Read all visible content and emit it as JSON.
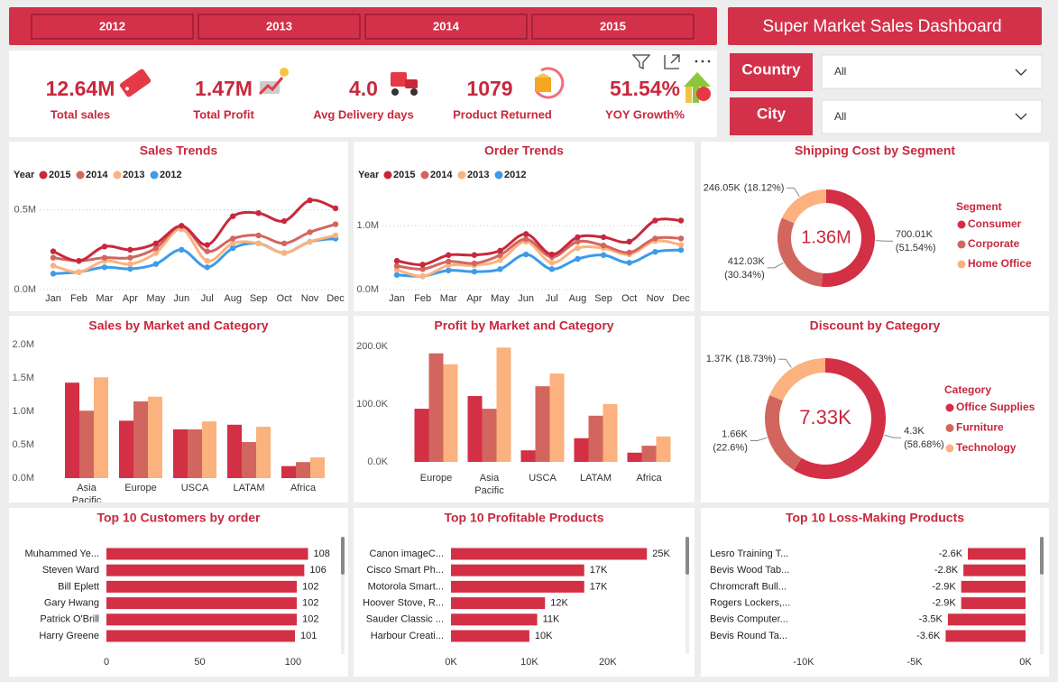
{
  "title": "Super Market Sales Dashboard",
  "years": [
    "2012",
    "2013",
    "2014",
    "2015"
  ],
  "kpis": [
    {
      "value": "12.64M",
      "label": "Total sales"
    },
    {
      "value": "1.47M",
      "label": "Total Profit"
    },
    {
      "value": "4.0",
      "label": "Avg Delivery days"
    },
    {
      "value": "1079",
      "label": "Product Returned"
    },
    {
      "value": "51.54%",
      "label": "YOY Growth%"
    }
  ],
  "filters": [
    {
      "label": "Country",
      "value": "All"
    },
    {
      "label": "City",
      "value": "All"
    }
  ],
  "chart_data": [
    {
      "type": "line",
      "title": "Sales Trends",
      "legend_title": "Year",
      "categories": [
        "Jan",
        "Feb",
        "Mar",
        "Apr",
        "May",
        "Jun",
        "Jul",
        "Aug",
        "Sep",
        "Oct",
        "Nov",
        "Dec"
      ],
      "series": [
        {
          "name": "2015",
          "color": "#c8283c",
          "values": [
            0.24,
            0.18,
            0.27,
            0.25,
            0.29,
            0.4,
            0.28,
            0.46,
            0.48,
            0.43,
            0.56,
            0.51
          ]
        },
        {
          "name": "2014",
          "color": "#d2665e",
          "values": [
            0.2,
            0.18,
            0.2,
            0.2,
            0.26,
            0.4,
            0.24,
            0.32,
            0.34,
            0.29,
            0.36,
            0.41
          ]
        },
        {
          "name": "2013",
          "color": "#fbb27e",
          "values": [
            0.15,
            0.11,
            0.18,
            0.16,
            0.23,
            0.38,
            0.18,
            0.29,
            0.29,
            0.23,
            0.3,
            0.34
          ]
        },
        {
          "name": "2012",
          "color": "#3d9be9",
          "values": [
            0.1,
            0.11,
            0.14,
            0.13,
            0.16,
            0.25,
            0.14,
            0.26,
            0.29,
            0.23,
            0.3,
            0.32
          ]
        }
      ],
      "ylim": [
        0,
        0.6
      ],
      "yticks": [
        {
          "value": 0,
          "label": "0.0M"
        },
        {
          "value": 0.5,
          "label": "0.5M"
        }
      ],
      "grid": true
    },
    {
      "type": "line",
      "title": "Order Trends",
      "legend_title": "Year",
      "categories": [
        "Jan",
        "Feb",
        "Mar",
        "Apr",
        "May",
        "Jun",
        "Jul",
        "Aug",
        "Sep",
        "Oct",
        "Nov",
        "Dec"
      ],
      "series": [
        {
          "name": "2015",
          "color": "#c8283c",
          "values": [
            0.45,
            0.39,
            0.54,
            0.54,
            0.61,
            0.87,
            0.55,
            0.82,
            0.82,
            0.75,
            1.08,
            1.08
          ]
        },
        {
          "name": "2014",
          "color": "#d2665e",
          "values": [
            0.37,
            0.32,
            0.44,
            0.41,
            0.54,
            0.79,
            0.51,
            0.75,
            0.69,
            0.58,
            0.8,
            0.8
          ]
        },
        {
          "name": "2013",
          "color": "#fbb27e",
          "values": [
            0.31,
            0.21,
            0.38,
            0.38,
            0.46,
            0.75,
            0.42,
            0.65,
            0.65,
            0.55,
            0.76,
            0.7
          ]
        },
        {
          "name": "2012",
          "color": "#3d9be9",
          "values": [
            0.23,
            0.21,
            0.3,
            0.28,
            0.32,
            0.55,
            0.32,
            0.48,
            0.54,
            0.42,
            0.59,
            0.62
          ]
        }
      ],
      "ylim": [
        0,
        1.2
      ],
      "yticks": [
        {
          "value": 0,
          "label": "0.0M"
        },
        {
          "value": 1,
          "label": "1.0M"
        }
      ],
      "grid": true
    },
    {
      "type": "donut",
      "title": "Shipping Cost by Segment",
      "center_label": "1.36M",
      "legend_title": "Segment",
      "categories": [
        "Consumer",
        "Corporate",
        "Home Office"
      ],
      "colors": [
        "#d32f45",
        "#d2665e",
        "#fbb27e"
      ],
      "values": [
        700.01,
        412.03,
        246.05
      ],
      "value_labels": [
        "700.01K",
        "412.03K",
        "246.05K"
      ],
      "percent_labels": [
        "(51.54%)",
        "(30.34%)",
        "(18.12%)"
      ]
    },
    {
      "type": "bar",
      "title": "Sales by Market and Category",
      "categories": [
        "Asia Pacific",
        "Europe",
        "USCA",
        "LATAM",
        "Africa"
      ],
      "series": [
        {
          "color": "#d32f45",
          "values": [
            1.43,
            0.86,
            0.73,
            0.8,
            0.18
          ]
        },
        {
          "color": "#d2665e",
          "values": [
            1.01,
            1.15,
            0.73,
            0.54,
            0.24
          ]
        },
        {
          "color": "#fbb27e",
          "values": [
            1.51,
            1.22,
            0.85,
            0.77,
            0.31
          ]
        }
      ],
      "ylim": [
        0,
        2.0
      ],
      "yticks": [
        {
          "value": 0,
          "label": "0.0M"
        },
        {
          "value": 0.5,
          "label": "0.5M"
        },
        {
          "value": 1,
          "label": "1.0M"
        },
        {
          "value": 1.5,
          "label": "1.5M"
        },
        {
          "value": 2,
          "label": "2.0M"
        }
      ]
    },
    {
      "type": "bar",
      "title": "Profit by Market and Category",
      "categories": [
        "Europe",
        "Asia Pacific",
        "USCA",
        "LATAM",
        "Africa"
      ],
      "series": [
        {
          "color": "#d32f45",
          "values": [
            92,
            114,
            20,
            41,
            16
          ]
        },
        {
          "color": "#d2665e",
          "values": [
            188,
            92,
            131,
            80,
            28
          ]
        },
        {
          "color": "#fbb27e",
          "values": [
            169,
            198,
            153,
            100,
            44
          ]
        }
      ],
      "ylim": [
        0,
        215
      ],
      "yticks": [
        {
          "value": 0,
          "label": "0.0K"
        },
        {
          "value": 100,
          "label": "100.0K"
        },
        {
          "value": 200,
          "label": "200.0K"
        }
      ]
    },
    {
      "type": "donut",
      "title": "Discount by Category",
      "center_label": "7.33K",
      "legend_title": "Category",
      "categories": [
        "Office Supplies",
        "Furniture",
        "Technology"
      ],
      "colors": [
        "#d32f45",
        "#d2665e",
        "#fbb27e"
      ],
      "values": [
        4.3,
        1.66,
        1.37
      ],
      "value_labels": [
        "4.3K",
        "1.66K",
        "1.37K"
      ],
      "percent_labels": [
        "(58.68%)",
        "(22.6%)",
        "(18.73%)"
      ]
    },
    {
      "type": "barh",
      "title": "Top 10 Customers by order",
      "color": "#d32f45",
      "categories": [
        "Muhammed Ye...",
        "Steven Ward",
        "Bill Eplett",
        "Gary Hwang",
        "Patrick O'Brill",
        "Harry Greene"
      ],
      "values": [
        108,
        106,
        102,
        102,
        102,
        101
      ],
      "xlim": [
        0,
        115
      ],
      "xticks": [
        0,
        50,
        100
      ]
    },
    {
      "type": "barh",
      "title": "Top 10 Profitable Products",
      "color": "#d32f45",
      "categories": [
        "Canon imageC...",
        "Cisco Smart Ph...",
        "Motorola Smart...",
        "Hoover Stove, R...",
        "Sauder Classic ...",
        "Harbour Creati..."
      ],
      "values": [
        25,
        17,
        17,
        12,
        11,
        10
      ],
      "value_labels": [
        "25K",
        "17K",
        "17K",
        "12K",
        "11K",
        "10K"
      ],
      "xlim": [
        0,
        29
      ],
      "xticks": [
        {
          "value": 0,
          "label": "0K"
        },
        {
          "value": 10,
          "label": "10K"
        },
        {
          "value": 20,
          "label": "20K"
        }
      ]
    },
    {
      "type": "barh",
      "title": "Top 10 Loss-Making Products",
      "color": "#d32f45",
      "categories": [
        "Lesro Training T...",
        "Bevis Wood Tab...",
        "Chromcraft Bull...",
        "Rogers Lockers,...",
        "Bevis Computer...",
        "Bevis Round Ta..."
      ],
      "values": [
        -2.6,
        -2.8,
        -2.9,
        -2.9,
        -3.5,
        -3.6
      ],
      "value_labels": [
        "-2.6K",
        "-2.8K",
        "-2.9K",
        "-2.9K",
        "-3.5K",
        "-3.6K"
      ],
      "xlim": [
        -11,
        0
      ],
      "xticks": [
        {
          "value": -10,
          "label": "-10K"
        },
        {
          "value": -5,
          "label": "-5K"
        },
        {
          "value": 0,
          "label": "0K"
        }
      ]
    }
  ]
}
